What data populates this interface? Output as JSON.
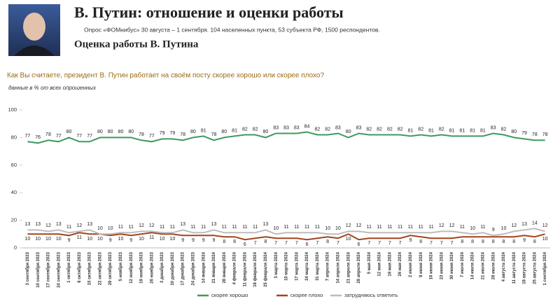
{
  "chart_data": {
    "type": "line",
    "title": "В. Путин: отношение и оценки работы",
    "subtitle": "Опрос «ФОМнибус» 30 августа – 1 сентября. 104 населенных пункта, 53 субъекта РФ, 1500 респондентов.",
    "section_title": "Оценка работы В. Путина",
    "question": "Как Вы считаете, президент В. Путин работает на своём посту скорее хорошо или скорее плохо?",
    "note": "данные в % от всех опрошенных",
    "categories": [
      "3 сентября 2023",
      "10 сентября 2023",
      "17 сентября 2023",
      "24 сентября 2023",
      "1 октября 2023",
      "8 октября 2023",
      "15 октября 2023",
      "22 октября 2023",
      "29 октября 2023",
      "5 ноября 2023",
      "12 ноября 2023",
      "19 ноября 2023",
      "26 ноября 2023",
      "3 декабря 2023",
      "10 декабря 2023",
      "17 декабря 2023",
      "24 декабря 2023",
      "14 января 2024",
      "21 января 2024",
      "28 января 2024",
      "4 февраля 2024",
      "11 февраля 2024",
      "18 февраля 2024",
      "25 февраля 2024",
      "3 марта 2024",
      "10 марта 2024",
      "17 марта 2024",
      "24 марта 2024",
      "31 марта 2024",
      "7 апреля 2024",
      "14 апреля 2024",
      "21 апреля 2024",
      "28 апреля 2024",
      "5 мая 2024",
      "12 мая 2024",
      "19 мая 2024",
      "26 мая 2024",
      "2 июня 2024",
      "9 июня 2024",
      "16 июня 2024",
      "23 июня 2024",
      "30 июня 2024",
      "7 июля 2024",
      "14 июля 2024",
      "21 июля 2024",
      "28 июля 2024",
      "4 августа 2024",
      "11 августа 2024",
      "18 августа 2024",
      "25 августа 2024",
      "1 сентября 2024"
    ],
    "series": [
      {
        "name": "скорее хорошо",
        "color": "#3d9b5c",
        "values": [
          77,
          76,
          78,
          77,
          80,
          77,
          77,
          80,
          80,
          80,
          80,
          78,
          77,
          79,
          79,
          78,
          80,
          81,
          78,
          80,
          81,
          82,
          82,
          80,
          83,
          83,
          83,
          84,
          82,
          82,
          83,
          80,
          83,
          82,
          82,
          82,
          82,
          81,
          82,
          81,
          82,
          81,
          81,
          81,
          81,
          83,
          82,
          80,
          79,
          78,
          78
        ]
      },
      {
        "name": "скорее плохо",
        "color": "#a3431c",
        "values": [
          10,
          10,
          10,
          10,
          9,
          11,
          10,
          10,
          9,
          10,
          9,
          10,
          11,
          10,
          10,
          9,
          9,
          9,
          9,
          8,
          8,
          6,
          7,
          8,
          7,
          7,
          7,
          6,
          7,
          8,
          7,
          10,
          6,
          7,
          7,
          7,
          7,
          9,
          8,
          7,
          7,
          7,
          8,
          8,
          8,
          8,
          8,
          8,
          9,
          8,
          10
        ]
      },
      {
        "name": "затрудняюсь ответить",
        "color": "#bdbdbd",
        "values": [
          13,
          13,
          12,
          13,
          11,
          12,
          13,
          10,
          10,
          11,
          11,
          12,
          12,
          11,
          11,
          13,
          11,
          11,
          13,
          11,
          11,
          11,
          11,
          13,
          10,
          11,
          11,
          11,
          11,
          10,
          10,
          12,
          12,
          11,
          11,
          11,
          11,
          11,
          11,
          11,
          12,
          12,
          11,
          10,
          11,
          9,
          10,
          12,
          13,
          14,
          12
        ]
      }
    ],
    "ylim": [
      0,
      100
    ],
    "yticks": [
      0,
      20,
      40,
      60,
      80,
      100
    ],
    "grid": false
  }
}
